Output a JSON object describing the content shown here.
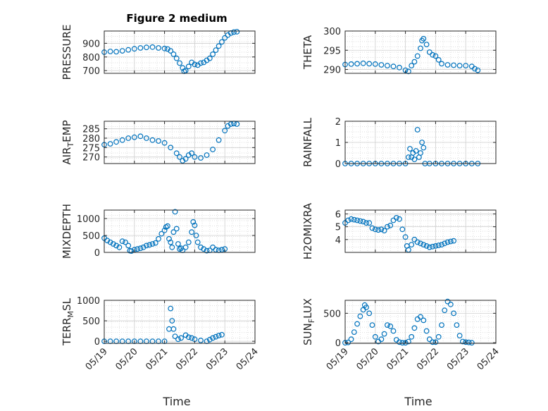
{
  "chart_data": {
    "type": "scatter",
    "title": "Figure 2 medium",
    "xlabel": "Time",
    "marker": "open-circle",
    "marker_color": "#0072BD",
    "grid": "on (dotted minor grid)",
    "xlim": [
      "05/19",
      "05/24"
    ],
    "x_tick_labels": [
      "05/19",
      "05/20",
      "05/21",
      "05/22",
      "05/23",
      "05/24"
    ],
    "panels": [
      {
        "id": "pressure",
        "ylabel_parts": [
          "PRESSURE"
        ],
        "ylim": [
          680,
          990
        ],
        "yticks": [
          700,
          800,
          900
        ],
        "ytick_labels": [
          "700",
          "800",
          "900"
        ],
        "points": [
          [
            0.0,
            835
          ],
          [
            0.2,
            840
          ],
          [
            0.4,
            838
          ],
          [
            0.6,
            845
          ],
          [
            0.8,
            852
          ],
          [
            1.0,
            860
          ],
          [
            1.2,
            866
          ],
          [
            1.4,
            870
          ],
          [
            1.6,
            872
          ],
          [
            1.8,
            866
          ],
          [
            2.0,
            862
          ],
          [
            2.1,
            858
          ],
          [
            2.2,
            845
          ],
          [
            2.3,
            820
          ],
          [
            2.4,
            790
          ],
          [
            2.5,
            755
          ],
          [
            2.6,
            720
          ],
          [
            2.65,
            695
          ],
          [
            2.7,
            700
          ],
          [
            2.8,
            730
          ],
          [
            2.9,
            760
          ],
          [
            3.0,
            745
          ],
          [
            3.1,
            740
          ],
          [
            3.2,
            755
          ],
          [
            3.3,
            760
          ],
          [
            3.4,
            775
          ],
          [
            3.5,
            790
          ],
          [
            3.6,
            820
          ],
          [
            3.7,
            850
          ],
          [
            3.8,
            880
          ],
          [
            3.9,
            910
          ],
          [
            4.0,
            940
          ],
          [
            4.1,
            960
          ],
          [
            4.2,
            975
          ],
          [
            4.3,
            982
          ],
          [
            4.4,
            985
          ]
        ]
      },
      {
        "id": "theta",
        "ylabel_parts": [
          "THETA"
        ],
        "ylim": [
          289,
          300
        ],
        "yticks": [
          290,
          295,
          300
        ],
        "ytick_labels": [
          "290",
          "295",
          "300"
        ],
        "points": [
          [
            0.0,
            291.3
          ],
          [
            0.2,
            291.4
          ],
          [
            0.4,
            291.5
          ],
          [
            0.6,
            291.6
          ],
          [
            0.8,
            291.5
          ],
          [
            1.0,
            291.4
          ],
          [
            1.2,
            291.2
          ],
          [
            1.4,
            291.0
          ],
          [
            1.6,
            290.8
          ],
          [
            1.8,
            290.5
          ],
          [
            2.0,
            289.8
          ],
          [
            2.1,
            289.5
          ],
          [
            2.2,
            291.0
          ],
          [
            2.3,
            292.0
          ],
          [
            2.4,
            293.5
          ],
          [
            2.5,
            295.5
          ],
          [
            2.55,
            297.5
          ],
          [
            2.6,
            298.0
          ],
          [
            2.7,
            296.5
          ],
          [
            2.8,
            294.5
          ],
          [
            2.9,
            293.8
          ],
          [
            3.0,
            293.5
          ],
          [
            3.1,
            292.5
          ],
          [
            3.2,
            291.5
          ],
          [
            3.4,
            291.2
          ],
          [
            3.6,
            291.1
          ],
          [
            3.8,
            291.0
          ],
          [
            4.0,
            291.0
          ],
          [
            4.2,
            290.8
          ],
          [
            4.3,
            290.2
          ],
          [
            4.4,
            289.8
          ]
        ]
      },
      {
        "id": "air_temp",
        "ylabel_parts": [
          "AIR",
          "T",
          "EMP"
        ],
        "ylim": [
          266.5,
          289
        ],
        "yticks": [
          270,
          275,
          280,
          285
        ],
        "ytick_labels": [
          "270",
          "275",
          "280",
          "285"
        ],
        "points": [
          [
            0.0,
            276.5
          ],
          [
            0.2,
            277.0
          ],
          [
            0.4,
            278.0
          ],
          [
            0.6,
            279.0
          ],
          [
            0.8,
            280.0
          ],
          [
            1.0,
            280.5
          ],
          [
            1.2,
            281.0
          ],
          [
            1.4,
            280.0
          ],
          [
            1.6,
            279.0
          ],
          [
            1.8,
            278.5
          ],
          [
            2.0,
            277.5
          ],
          [
            2.2,
            275.0
          ],
          [
            2.4,
            272.0
          ],
          [
            2.5,
            270.0
          ],
          [
            2.6,
            268.0
          ],
          [
            2.7,
            269.0
          ],
          [
            2.8,
            271.0
          ],
          [
            2.9,
            272.0
          ],
          [
            3.0,
            270.0
          ],
          [
            3.2,
            269.5
          ],
          [
            3.4,
            271.0
          ],
          [
            3.6,
            274.0
          ],
          [
            3.8,
            279.0
          ],
          [
            4.0,
            284.0
          ],
          [
            4.1,
            286.5
          ],
          [
            4.2,
            287.5
          ],
          [
            4.3,
            287.8
          ],
          [
            4.4,
            287.5
          ]
        ]
      },
      {
        "id": "rainfall",
        "ylabel_parts": [
          "RAINFALL"
        ],
        "ylim": [
          0,
          2
        ],
        "yticks": [
          0,
          1,
          2
        ],
        "ytick_labels": [
          "0",
          "1",
          "2"
        ],
        "points": [
          [
            0.0,
            0
          ],
          [
            0.2,
            0
          ],
          [
            0.4,
            0
          ],
          [
            0.6,
            0
          ],
          [
            0.8,
            0
          ],
          [
            1.0,
            0
          ],
          [
            1.2,
            0
          ],
          [
            1.4,
            0
          ],
          [
            1.6,
            0
          ],
          [
            1.8,
            0
          ],
          [
            2.0,
            0
          ],
          [
            2.1,
            0.3
          ],
          [
            2.15,
            0.7
          ],
          [
            2.2,
            0.3
          ],
          [
            2.25,
            0.5
          ],
          [
            2.3,
            0.2
          ],
          [
            2.35,
            0.6
          ],
          [
            2.4,
            1.6
          ],
          [
            2.45,
            0.3
          ],
          [
            2.5,
            0.5
          ],
          [
            2.55,
            1.0
          ],
          [
            2.6,
            0.75
          ],
          [
            2.65,
            0
          ],
          [
            2.8,
            0
          ],
          [
            3.0,
            0
          ],
          [
            3.2,
            0
          ],
          [
            3.4,
            0
          ],
          [
            3.6,
            0
          ],
          [
            3.8,
            0
          ],
          [
            4.0,
            0
          ],
          [
            4.2,
            0
          ],
          [
            4.4,
            0
          ]
        ]
      },
      {
        "id": "mixdepth",
        "ylabel_parts": [
          "MIXDEPTH"
        ],
        "ylim": [
          0,
          1250
        ],
        "yticks": [
          0,
          500,
          1000
        ],
        "ytick_labels": [
          "0",
          "500",
          "1000"
        ],
        "points": [
          [
            0.0,
            420
          ],
          [
            0.1,
            350
          ],
          [
            0.2,
            300
          ],
          [
            0.3,
            250
          ],
          [
            0.4,
            200
          ],
          [
            0.5,
            150
          ],
          [
            0.6,
            330
          ],
          [
            0.7,
            300
          ],
          [
            0.8,
            200
          ],
          [
            0.85,
            50
          ],
          [
            0.9,
            40
          ],
          [
            1.0,
            80
          ],
          [
            1.1,
            100
          ],
          [
            1.2,
            120
          ],
          [
            1.3,
            150
          ],
          [
            1.4,
            200
          ],
          [
            1.5,
            220
          ],
          [
            1.6,
            250
          ],
          [
            1.7,
            280
          ],
          [
            1.8,
            400
          ],
          [
            1.9,
            550
          ],
          [
            2.0,
            650
          ],
          [
            2.05,
            750
          ],
          [
            2.1,
            780
          ],
          [
            2.15,
            400
          ],
          [
            2.2,
            300
          ],
          [
            2.25,
            150
          ],
          [
            2.3,
            600
          ],
          [
            2.35,
            1200
          ],
          [
            2.4,
            700
          ],
          [
            2.45,
            250
          ],
          [
            2.5,
            100
          ],
          [
            2.55,
            120
          ],
          [
            2.6,
            60
          ],
          [
            2.7,
            150
          ],
          [
            2.8,
            300
          ],
          [
            2.9,
            600
          ],
          [
            2.95,
            900
          ],
          [
            3.0,
            800
          ],
          [
            3.05,
            500
          ],
          [
            3.1,
            300
          ],
          [
            3.2,
            150
          ],
          [
            3.3,
            100
          ],
          [
            3.4,
            50
          ],
          [
            3.5,
            60
          ],
          [
            3.6,
            150
          ],
          [
            3.7,
            80
          ],
          [
            3.8,
            60
          ],
          [
            3.9,
            80
          ],
          [
            4.0,
            100
          ]
        ]
      },
      {
        "id": "h2omixra",
        "ylabel_parts": [
          "H2OMIXRA"
        ],
        "ylim": [
          3,
          6.3
        ],
        "yticks": [
          4,
          5,
          6
        ],
        "ytick_labels": [
          "4",
          "5",
          "6"
        ],
        "points": [
          [
            0.0,
            5.3
          ],
          [
            0.1,
            5.5
          ],
          [
            0.2,
            5.6
          ],
          [
            0.3,
            5.55
          ],
          [
            0.4,
            5.5
          ],
          [
            0.5,
            5.45
          ],
          [
            0.6,
            5.4
          ],
          [
            0.7,
            5.3
          ],
          [
            0.8,
            5.3
          ],
          [
            0.9,
            4.9
          ],
          [
            1.0,
            4.8
          ],
          [
            1.1,
            4.75
          ],
          [
            1.2,
            4.8
          ],
          [
            1.3,
            4.7
          ],
          [
            1.4,
            5.0
          ],
          [
            1.5,
            5.1
          ],
          [
            1.6,
            5.5
          ],
          [
            1.7,
            5.7
          ],
          [
            1.8,
            5.6
          ],
          [
            1.9,
            4.8
          ],
          [
            2.0,
            4.2
          ],
          [
            2.05,
            3.5
          ],
          [
            2.1,
            3.2
          ],
          [
            2.2,
            3.6
          ],
          [
            2.3,
            4.0
          ],
          [
            2.4,
            3.8
          ],
          [
            2.5,
            3.7
          ],
          [
            2.6,
            3.6
          ],
          [
            2.7,
            3.5
          ],
          [
            2.8,
            3.4
          ],
          [
            2.9,
            3.45
          ],
          [
            3.0,
            3.5
          ],
          [
            3.1,
            3.55
          ],
          [
            3.2,
            3.6
          ],
          [
            3.3,
            3.7
          ],
          [
            3.4,
            3.8
          ],
          [
            3.5,
            3.85
          ],
          [
            3.6,
            3.9
          ]
        ]
      },
      {
        "id": "terr_msl",
        "ylabel_parts": [
          "TERR",
          "M",
          "SL"
        ],
        "ylim": [
          -50,
          1000
        ],
        "yticks": [
          0,
          500,
          1000
        ],
        "ytick_labels": [
          "0",
          "500",
          "1000"
        ],
        "points": [
          [
            0.0,
            0
          ],
          [
            0.2,
            0
          ],
          [
            0.4,
            0
          ],
          [
            0.6,
            0
          ],
          [
            0.8,
            0
          ],
          [
            1.0,
            0
          ],
          [
            1.2,
            0
          ],
          [
            1.4,
            0
          ],
          [
            1.6,
            0
          ],
          [
            1.8,
            0
          ],
          [
            2.0,
            0
          ],
          [
            2.15,
            300
          ],
          [
            2.2,
            800
          ],
          [
            2.25,
            500
          ],
          [
            2.3,
            300
          ],
          [
            2.35,
            120
          ],
          [
            2.45,
            50
          ],
          [
            2.55,
            80
          ],
          [
            2.7,
            150
          ],
          [
            2.8,
            100
          ],
          [
            2.9,
            80
          ],
          [
            3.0,
            50
          ],
          [
            3.2,
            20
          ],
          [
            3.4,
            0
          ],
          [
            3.5,
            40
          ],
          [
            3.6,
            80
          ],
          [
            3.7,
            110
          ],
          [
            3.8,
            140
          ],
          [
            3.9,
            160
          ]
        ]
      },
      {
        "id": "sun_flux",
        "ylabel_parts": [
          "SUN",
          "F",
          "LUX"
        ],
        "ylim": [
          -10,
          720
        ],
        "yticks": [
          0,
          500
        ],
        "ytick_labels": [
          "0",
          "500"
        ],
        "points": [
          [
            0.0,
            0
          ],
          [
            0.1,
            5
          ],
          [
            0.2,
            60
          ],
          [
            0.3,
            180
          ],
          [
            0.4,
            320
          ],
          [
            0.5,
            450
          ],
          [
            0.6,
            560
          ],
          [
            0.65,
            640
          ],
          [
            0.7,
            600
          ],
          [
            0.8,
            500
          ],
          [
            0.9,
            300
          ],
          [
            1.0,
            100
          ],
          [
            1.1,
            20
          ],
          [
            1.2,
            60
          ],
          [
            1.3,
            150
          ],
          [
            1.4,
            300
          ],
          [
            1.5,
            280
          ],
          [
            1.6,
            200
          ],
          [
            1.7,
            50
          ],
          [
            1.8,
            10
          ],
          [
            1.9,
            0
          ],
          [
            2.0,
            0
          ],
          [
            2.1,
            20
          ],
          [
            2.2,
            100
          ],
          [
            2.3,
            250
          ],
          [
            2.4,
            400
          ],
          [
            2.5,
            440
          ],
          [
            2.6,
            380
          ],
          [
            2.7,
            200
          ],
          [
            2.8,
            60
          ],
          [
            2.9,
            10
          ],
          [
            3.0,
            10
          ],
          [
            3.1,
            100
          ],
          [
            3.2,
            300
          ],
          [
            3.3,
            550
          ],
          [
            3.4,
            700
          ],
          [
            3.5,
            650
          ],
          [
            3.6,
            500
          ],
          [
            3.7,
            300
          ],
          [
            3.8,
            120
          ],
          [
            3.9,
            20
          ],
          [
            4.0,
            10
          ],
          [
            4.1,
            5
          ],
          [
            4.2,
            0
          ]
        ]
      }
    ]
  }
}
